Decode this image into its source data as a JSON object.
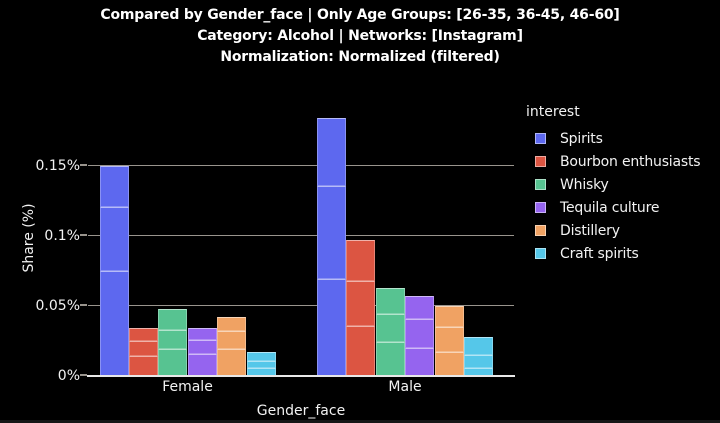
{
  "title": {
    "lines": [
      "Compared by Gender_face | Only Age Groups: [26-35, 36-45, 46-60]",
      "Category: Alcohol | Networks: [Instagram]",
      "Normalization: Normalized (filtered)"
    ]
  },
  "chart_data": {
    "type": "bar",
    "bar_mode": "grouped by category; each bar stacked into 3 segments (one per age group)",
    "stack_labels_bottom_to_top": [
      "26-35",
      "36-45",
      "46-60"
    ],
    "categories": [
      "Female",
      "Male"
    ],
    "xlabel": "Gender_face",
    "ylabel": "Share (%)",
    "legend_title": "interest",
    "legend_position": "right",
    "grid": true,
    "ylim": [
      0,
      0.2
    ],
    "yticks": {
      "values": [
        0,
        0.05,
        0.1,
        0.15
      ],
      "labels": [
        "0%",
        "0.05%",
        "0.1%",
        "0.15%"
      ]
    },
    "series": [
      {
        "name": "Spirits",
        "color": "#5D68EF",
        "totals": [
          0.15,
          0.184
        ],
        "segments_bottom_to_top": [
          [
            0.075,
            0.046,
            0.029
          ],
          [
            0.069,
            0.067,
            0.048
          ]
        ]
      },
      {
        "name": "Bourbon enthusiasts",
        "color": "#DC5542",
        "totals": [
          0.034,
          0.097
        ],
        "segments_bottom_to_top": [
          [
            0.014,
            0.011,
            0.009
          ],
          [
            0.036,
            0.032,
            0.029
          ]
        ]
      },
      {
        "name": "Whisky",
        "color": "#57C391",
        "totals": [
          0.048,
          0.063
        ],
        "segments_bottom_to_top": [
          [
            0.019,
            0.014,
            0.015
          ],
          [
            0.024,
            0.02,
            0.019
          ]
        ]
      },
      {
        "name": "Tequila culture",
        "color": "#9564EF",
        "totals": [
          0.034,
          0.057
        ],
        "segments_bottom_to_top": [
          [
            0.016,
            0.01,
            0.008
          ],
          [
            0.02,
            0.021,
            0.016
          ]
        ]
      },
      {
        "name": "Distillery",
        "color": "#F0A263",
        "totals": [
          0.042,
          0.05
        ],
        "segments_bottom_to_top": [
          [
            0.019,
            0.013,
            0.01
          ],
          [
            0.017,
            0.018,
            0.015
          ]
        ]
      },
      {
        "name": "Craft spirits",
        "color": "#55C7E9",
        "totals": [
          0.017,
          0.028
        ],
        "segments_bottom_to_top": [
          [
            0.006,
            0.005,
            0.006
          ],
          [
            0.006,
            0.009,
            0.013
          ]
        ]
      }
    ]
  },
  "colors": {
    "background": "#000000",
    "text": "#F2F2F2",
    "gridline": "#99948D",
    "axis_line": "#E8E8E8",
    "segment_divider": "rgba(255,255,255,0.55)"
  }
}
